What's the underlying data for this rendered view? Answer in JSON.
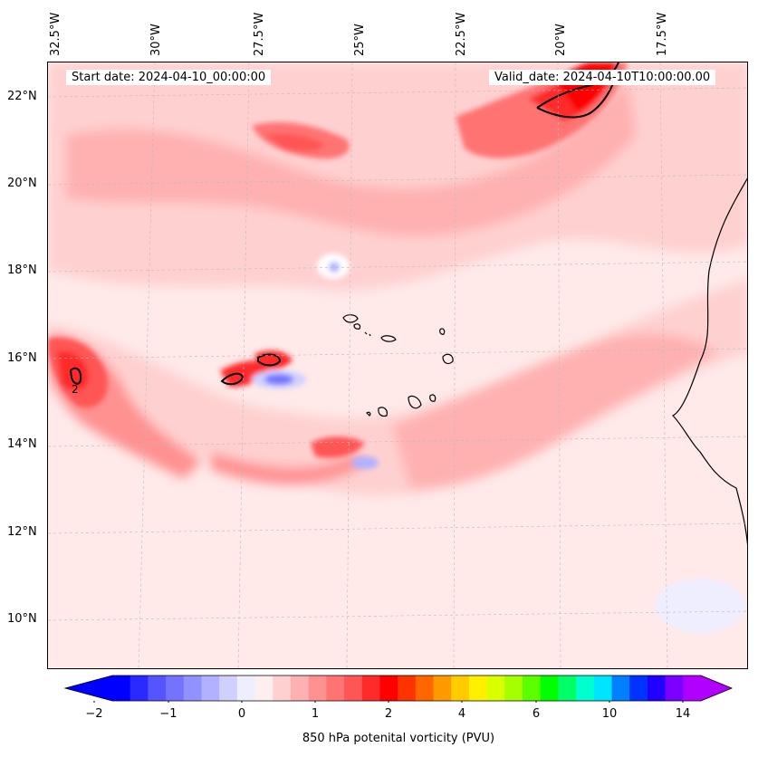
{
  "map": {
    "longitude_labels": [
      "32.5°W",
      "30°W",
      "27.5°W",
      "25°W",
      "22.5°W",
      "20°W",
      "17.5°W"
    ],
    "latitude_labels": [
      "22°N",
      "20°N",
      "18°N",
      "16°N",
      "14°N",
      "12°N",
      "10°N"
    ],
    "start_date": "Start date: 2024-04-10_00:00:00",
    "valid_date": "Valid_date: 2024-04-10T10:00:00.00",
    "contour_label": "2"
  },
  "colorbar": {
    "label": "850 hPa potenital vorticity (PVU)",
    "ticks": [
      "−2",
      "−1",
      "0",
      "1",
      "2",
      "4",
      "6",
      "10",
      "14"
    ],
    "colors": [
      "#0000ff",
      "#2a2aff",
      "#5555ff",
      "#7373ff",
      "#9191ff",
      "#b1b1ff",
      "#d0d0ff",
      "#eeeeff",
      "#ffeeee",
      "#ffd0d0",
      "#ffb1b1",
      "#ff9191",
      "#ff7373",
      "#ff5555",
      "#ff2a2a",
      "#ff0000",
      "#ff3300",
      "#ff6600",
      "#ff9900",
      "#ffcc00",
      "#fff000",
      "#d9ff00",
      "#a6ff00",
      "#5aff00",
      "#00ff00",
      "#00ff66",
      "#00ffcc",
      "#00e5ff",
      "#0080ff",
      "#0033ff",
      "#2200ff",
      "#7a00ff",
      "#b000ff"
    ]
  }
}
